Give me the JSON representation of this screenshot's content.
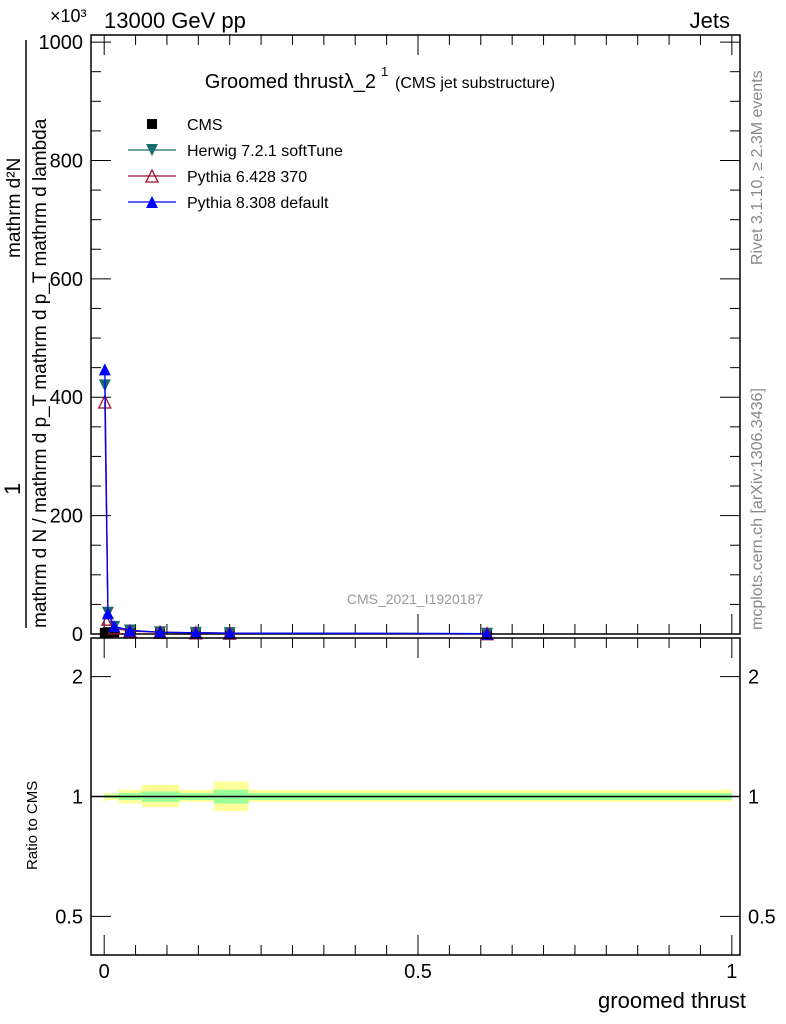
{
  "header": {
    "left": "13000 GeV pp",
    "right": "Jets",
    "exponent": "×10³"
  },
  "side_labels": {
    "rivet": "Rivet 3.1.10, ≥ 2.3M events",
    "mcplots": "mcplots.cern.ch [arXiv:1306.3436]"
  },
  "watermark": "CMS_2021_I1920187",
  "colors": {
    "cms": "#000000",
    "herwig": "#1a6b6b",
    "pythia6": "#a01030",
    "pythia8": "#0000ff",
    "band_inner": "#99ff99",
    "band_outer": "#ffff99"
  },
  "chart_data": [
    {
      "type": "line",
      "title": "Groomed thrustλ_2",
      "title_sup": "1",
      "subtitle": "(CMS jet substructure)",
      "ylabel": "1 / mathrm d N / mathrm d p_T mathrm d p_T mathrm d lambda  mathrm d²N",
      "ylabel_num": "mathrm d²N",
      "ylabel_den": "mathrm d N / mathrm d p_T mathrm d p_T mathrm d lambda",
      "ylabel_one": "1",
      "y_scale_factor": "x1000",
      "xlim": [
        -0.021,
        1.013
      ],
      "ylim": [
        0,
        1012
      ],
      "yticks": [
        0,
        200,
        400,
        600,
        800,
        1000
      ],
      "ytick_labels": [
        "0",
        "200",
        "400",
        "600",
        "800",
        "1000"
      ],
      "legend_position": "top-left",
      "x": [
        0.001,
        0.006,
        0.016,
        0.041,
        0.089,
        0.146,
        0.2,
        0.61
      ],
      "series": [
        {
          "name": "CMS",
          "marker": "square",
          "values": [
            2,
            3,
            3,
            2,
            1.5,
            1,
            1,
            0.5
          ]
        },
        {
          "name": "Herwig 7.2.1 softTune",
          "marker": "triangle-down",
          "values": [
            420,
            36,
            12,
            6,
            3,
            2,
            1.5,
            0.5
          ]
        },
        {
          "name": "Pythia 6.428 370",
          "marker": "triangle-up-open",
          "values": [
            392,
            25,
            10,
            5,
            3,
            2,
            1.5,
            0.5
          ]
        },
        {
          "name": "Pythia 8.308 default",
          "marker": "triangle-up",
          "values": [
            447,
            35,
            13,
            6,
            3,
            2,
            1.5,
            0.5
          ]
        }
      ]
    },
    {
      "type": "area",
      "ylabel": "Ratio to CMS",
      "xlabel": "groomed thrust",
      "y_scale": "log",
      "ylim": [
        0.4,
        2.5
      ],
      "yticks": [
        0.5,
        1,
        2
      ],
      "ytick_labels": [
        "0.5",
        "1",
        "2"
      ],
      "xticks": [
        0,
        0.5,
        1
      ],
      "xtick_labels": [
        "0",
        "0.5",
        "1"
      ],
      "bins": [
        [
          0,
          0.003
        ],
        [
          0.003,
          0.023
        ],
        [
          0.023,
          0.06
        ],
        [
          0.06,
          0.12
        ],
        [
          0.12,
          0.175
        ],
        [
          0.175,
          0.23
        ],
        [
          0.23,
          1.0
        ]
      ],
      "inner_band": [
        [
          0.99,
          1.01
        ],
        [
          0.99,
          1.01
        ],
        [
          0.98,
          1.02
        ],
        [
          0.97,
          1.03
        ],
        [
          0.98,
          1.02
        ],
        [
          0.96,
          1.04
        ],
        [
          0.98,
          1.02
        ]
      ],
      "outer_band": [
        [
          0.97,
          1.03
        ],
        [
          0.98,
          1.02
        ],
        [
          0.96,
          1.04
        ],
        [
          0.94,
          1.07
        ],
        [
          0.97,
          1.04
        ],
        [
          0.92,
          1.09
        ],
        [
          0.97,
          1.04
        ]
      ]
    }
  ]
}
